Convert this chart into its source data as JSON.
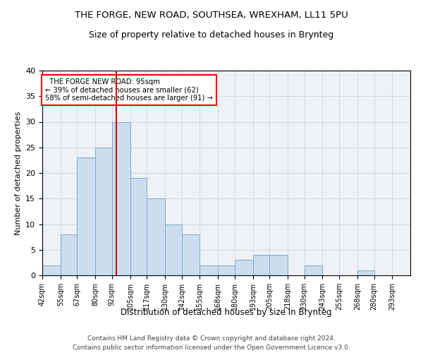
{
  "title1": "THE FORGE, NEW ROAD, SOUTHSEA, WREXHAM, LL11 5PU",
  "title2": "Size of property relative to detached houses in Brynteg",
  "xlabel": "Distribution of detached houses by size in Brynteg",
  "ylabel": "Number of detached properties",
  "footer1": "Contains HM Land Registry data © Crown copyright and database right 2024.",
  "footer2": "Contains public sector information licensed under the Open Government Licence v3.0.",
  "annotation_line1": "  THE FORGE NEW ROAD: 95sqm  ",
  "annotation_line2": "← 39% of detached houses are smaller (62)",
  "annotation_line3": "58% of semi-detached houses are larger (91) →",
  "property_size": 95,
  "bar_color": "#ccdded",
  "bar_edge_color": "#7aaacc",
  "line_color": "#cc0000",
  "grid_color": "#d0d8e0",
  "bg_color": "#eef2f6",
  "categories": [
    "42sqm",
    "55sqm",
    "67sqm",
    "80sqm",
    "92sqm",
    "105sqm",
    "117sqm",
    "130sqm",
    "142sqm",
    "155sqm",
    "168sqm",
    "180sqm",
    "193sqm",
    "205sqm",
    "218sqm",
    "230sqm",
    "243sqm",
    "255sqm",
    "268sqm",
    "280sqm",
    "293sqm"
  ],
  "values": [
    2,
    8,
    23,
    25,
    30,
    19,
    15,
    10,
    8,
    2,
    2,
    3,
    4,
    4,
    0,
    2,
    0,
    0,
    1,
    0,
    0
  ],
  "bin_edges": [
    42,
    55,
    67,
    80,
    92,
    105,
    117,
    130,
    142,
    155,
    168,
    180,
    193,
    205,
    218,
    230,
    243,
    255,
    268,
    280,
    293,
    306
  ],
  "ylim": [
    0,
    40
  ],
  "yticks": [
    0,
    5,
    10,
    15,
    20,
    25,
    30,
    35,
    40
  ]
}
